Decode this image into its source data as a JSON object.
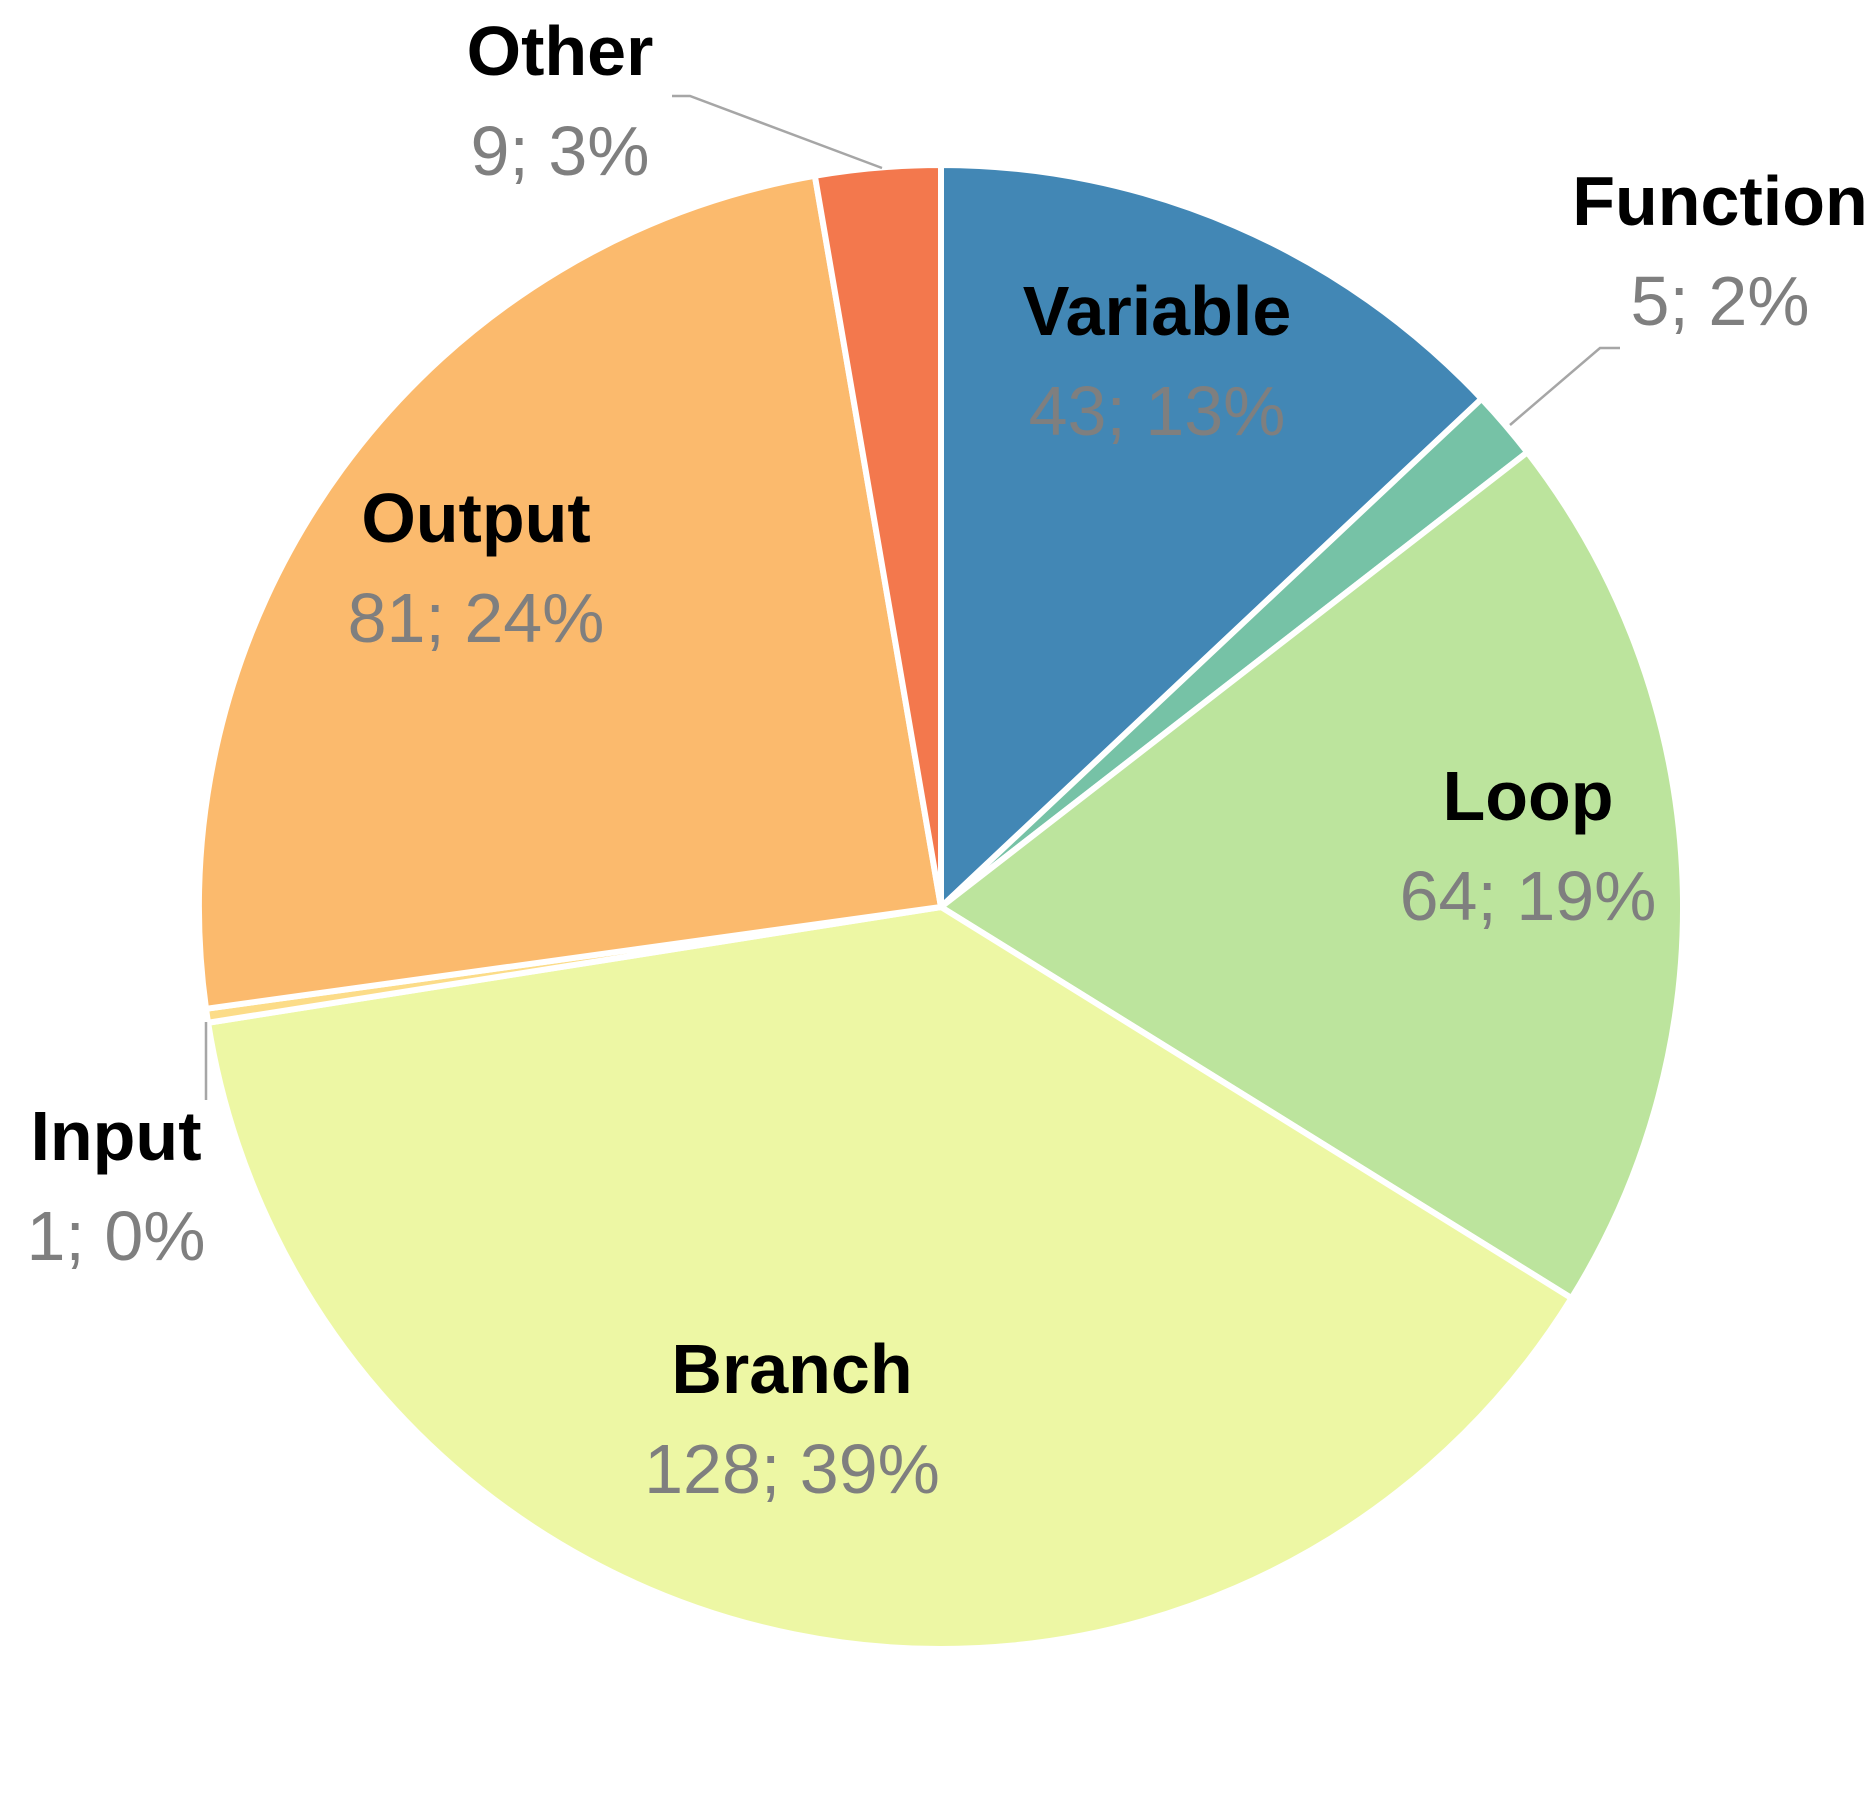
{
  "chart_data": {
    "type": "pie",
    "start_angle": "12 o'clock, clockwise",
    "slices": [
      {
        "label": "Variable",
        "value": 43,
        "percent_label": "43; 13%",
        "color": "#4287b5",
        "value_color": "#d9d9d9"
      },
      {
        "label": "Function",
        "value": 5,
        "percent_label": "5; 2%",
        "color": "#76c2a6",
        "value_color": "#7f7f7f"
      },
      {
        "label": "Loop",
        "value": 64,
        "percent_label": "64; 19%",
        "color": "#bce49d",
        "value_color": "#7f7f7f"
      },
      {
        "label": "Branch",
        "value": 128,
        "percent_label": "128; 39%",
        "color": "#edf7a4",
        "value_color": "#7f7f7f"
      },
      {
        "label": "Input",
        "value": 1,
        "percent_label": "1; 0%",
        "color": "#fcdc88",
        "value_color": "#7f7f7f"
      },
      {
        "label": "Output",
        "value": 81,
        "percent_label": "81; 24%",
        "color": "#fbba6d",
        "value_color": "#7f7f7f"
      },
      {
        "label": "Other",
        "value": 9,
        "percent_label": "9; 3%",
        "color": "#f3784d",
        "value_color": "#7f7f7f"
      }
    ]
  }
}
